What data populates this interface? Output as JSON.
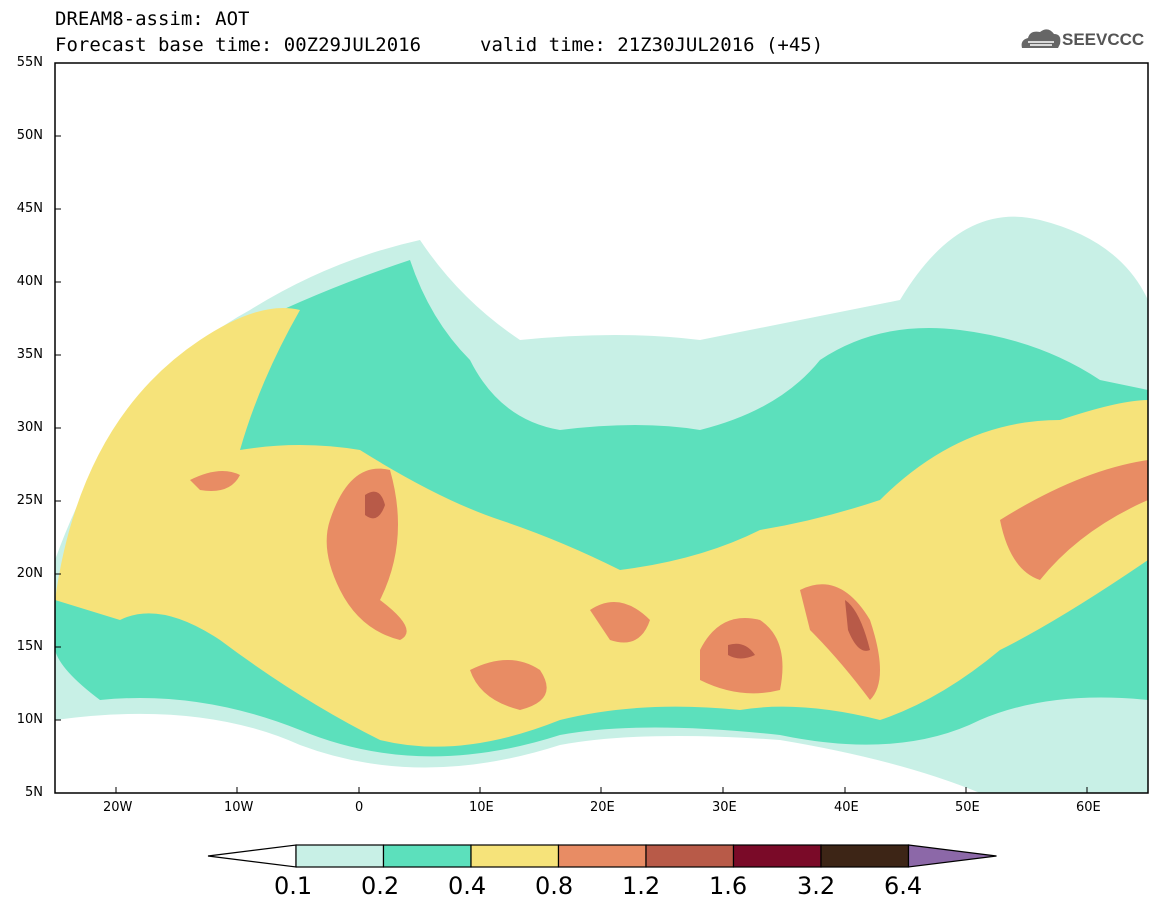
{
  "header": {
    "title": "DREAM8-assim: AOT",
    "base_time": "Forecast base time: 00Z29JUL2016",
    "valid_time": "valid time: 21Z30JUL2016 (+45)",
    "logo_text": "SEEVCCC"
  },
  "map": {
    "lat_labels": [
      "55N",
      "50N",
      "45N",
      "40N",
      "35N",
      "30N",
      "25N",
      "20N",
      "15N",
      "10N",
      "5N"
    ],
    "lon_labels": [
      "20W",
      "10W",
      "0",
      "10E",
      "20E",
      "30E",
      "40E",
      "50E",
      "60E"
    ],
    "lat_range": [
      5,
      55
    ],
    "lon_range": [
      -25,
      65
    ]
  },
  "colorbar": {
    "labels": [
      "0.1",
      "0.2",
      "0.4",
      "0.8",
      "1.2",
      "1.6",
      "3.2",
      "6.4"
    ],
    "colors": [
      "#ffffff",
      "#c8f0e6",
      "#5ce0bc",
      "#f6e37a",
      "#e88c64",
      "#b85a48",
      "#7a0a28",
      "#3d2516",
      "#8c68a8"
    ]
  }
}
